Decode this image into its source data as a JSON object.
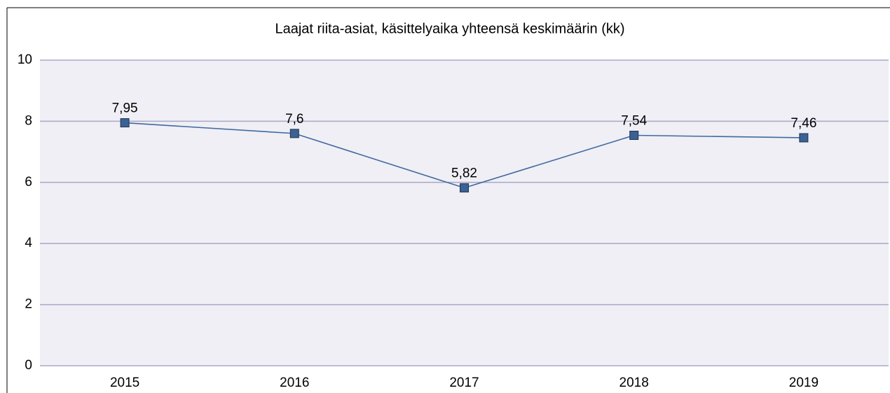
{
  "chart_data": {
    "type": "line",
    "title": "Laajat riita-asiat, käsittelyaika yhteensä keskimäärin (kk)",
    "categories": [
      "2015",
      "2016",
      "2017",
      "2018",
      "2019"
    ],
    "series": [
      {
        "name": null,
        "color": "#3f6a9f",
        "values": [
          7.95,
          7.6,
          5.82,
          7.54,
          7.46
        ],
        "value_labels": [
          "7,95",
          "7,6",
          "5,82",
          "7,54",
          "7,46"
        ]
      }
    ],
    "ylim": [
      0,
      10
    ],
    "yticks": [
      0,
      2,
      4,
      6,
      8,
      10
    ],
    "grid": true
  }
}
